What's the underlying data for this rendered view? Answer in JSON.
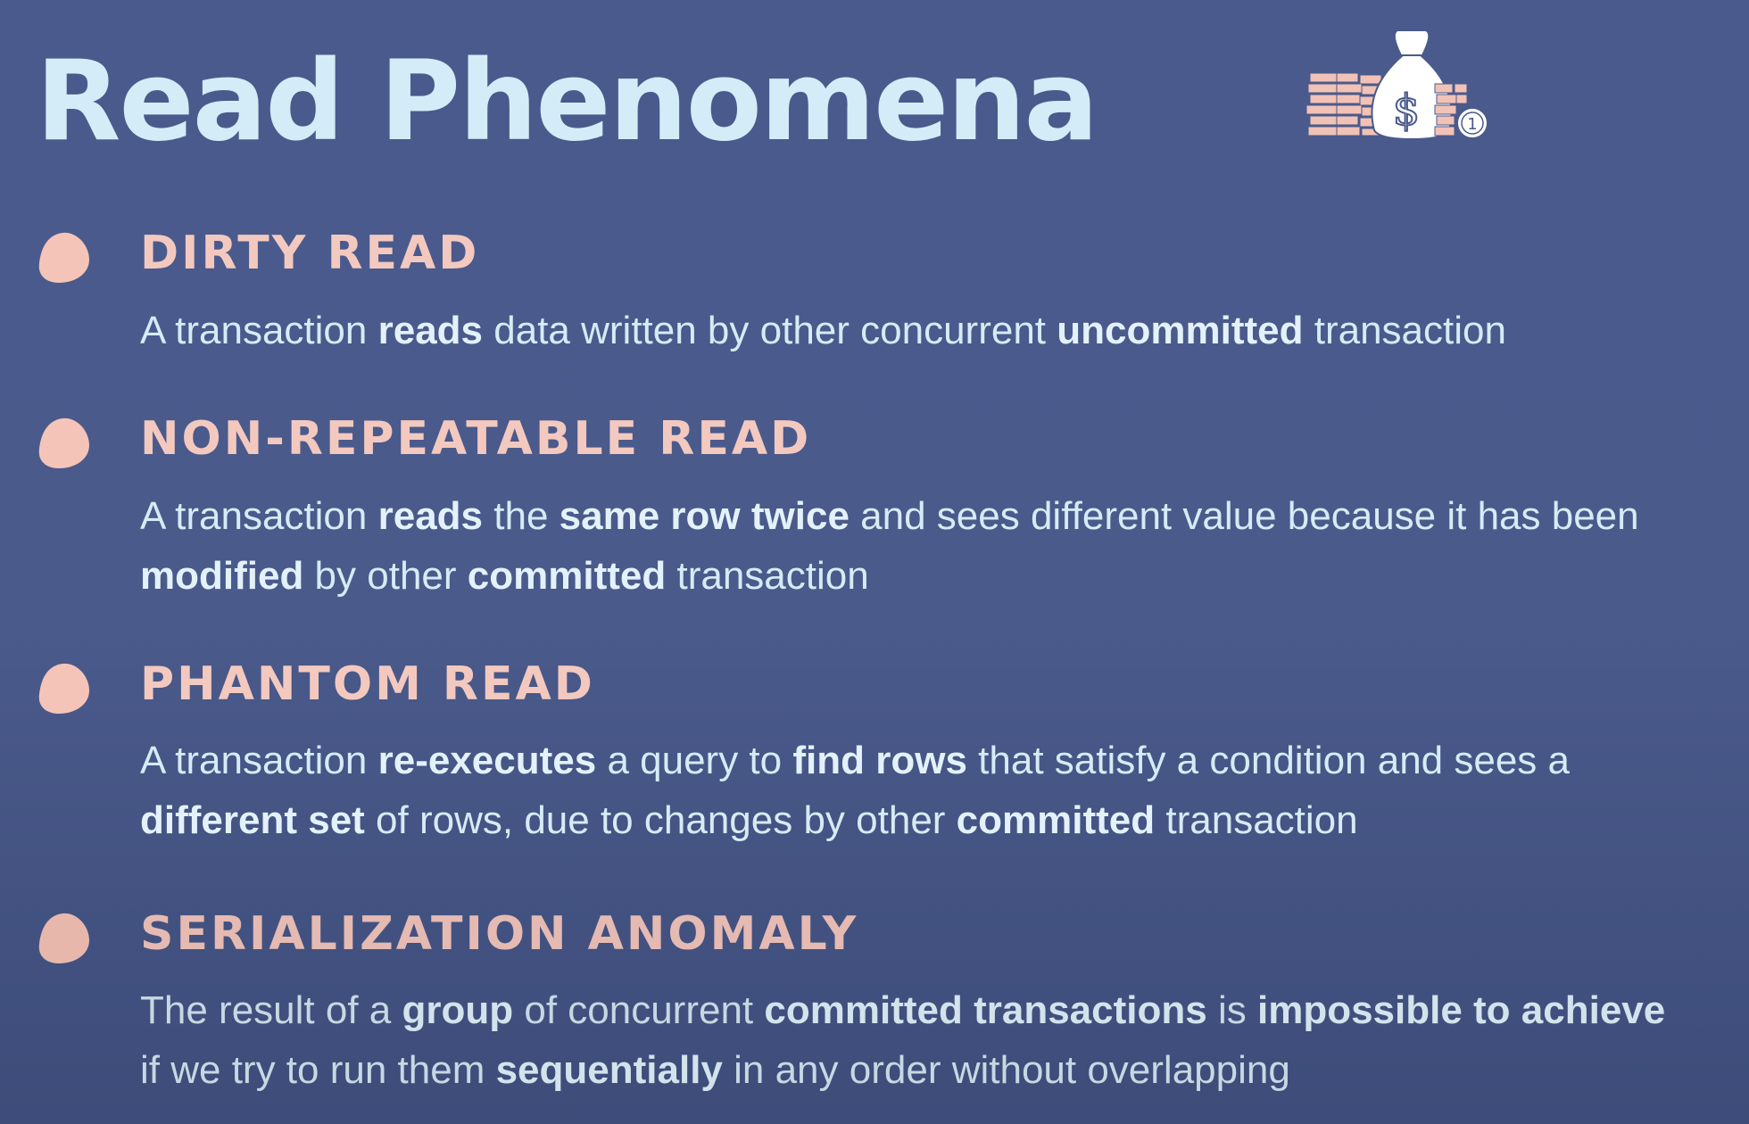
{
  "slide": {
    "title": "Read Phenomena",
    "logo": {
      "icon": "money-bag-icon",
      "badge_text": "1",
      "colors": {
        "bag": "#ffffff",
        "bars": "#f2c2b6",
        "outline": "#4a5a8c"
      }
    }
  },
  "colors": {
    "background": "#4a5a8c",
    "title": "#d4ecf7",
    "heading": "#f3c9bf",
    "text": "#d6ebf5",
    "bullet": "#f5c4b8"
  },
  "items": [
    {
      "heading": "DIRTY READ",
      "bullet_icon": "blob-bullet-icon",
      "text": [
        {
          "t": "A transaction ",
          "b": false
        },
        {
          "t": "reads",
          "b": true
        },
        {
          "t": " data written by other concurrent ",
          "b": false
        },
        {
          "t": "uncommitted",
          "b": true
        },
        {
          "t": " transaction",
          "b": false
        }
      ]
    },
    {
      "heading": "NON-REPEATABLE READ",
      "bullet_icon": "blob-bullet-icon",
      "text": [
        {
          "t": "A transaction ",
          "b": false
        },
        {
          "t": "reads",
          "b": true
        },
        {
          "t": " the ",
          "b": false
        },
        {
          "t": "same row twice",
          "b": true
        },
        {
          "t": " and sees different value because it has been ",
          "b": false
        },
        {
          "t": "modified",
          "b": true
        },
        {
          "t": " by other ",
          "b": false
        },
        {
          "t": "committed",
          "b": true
        },
        {
          "t": " transaction",
          "b": false
        }
      ]
    },
    {
      "heading": "PHANTOM READ",
      "bullet_icon": "blob-bullet-icon",
      "text": [
        {
          "t": "A transaction ",
          "b": false
        },
        {
          "t": "re-executes",
          "b": true
        },
        {
          "t": " a query to ",
          "b": false
        },
        {
          "t": "find rows",
          "b": true
        },
        {
          "t": " that satisfy a condition and sees a ",
          "b": false
        },
        {
          "t": "different set",
          "b": true
        },
        {
          "t": " of rows, due to changes by other ",
          "b": false
        },
        {
          "t": "committed",
          "b": true
        },
        {
          "t": " transaction",
          "b": false
        }
      ]
    },
    {
      "heading": "SERIALIZATION ANOMALY",
      "bullet_icon": "blob-bullet-icon",
      "text": [
        {
          "t": "The result of a ",
          "b": false
        },
        {
          "t": "group",
          "b": true
        },
        {
          "t": " of concurrent ",
          "b": false
        },
        {
          "t": "committed transactions",
          "b": true
        },
        {
          "t": " is ",
          "b": false
        },
        {
          "t": "impossible to achieve",
          "b": true
        },
        {
          "t": " if we try to run them ",
          "b": false
        },
        {
          "t": "sequentially",
          "b": true
        },
        {
          "t": " in any order without overlapping",
          "b": false
        }
      ]
    }
  ]
}
